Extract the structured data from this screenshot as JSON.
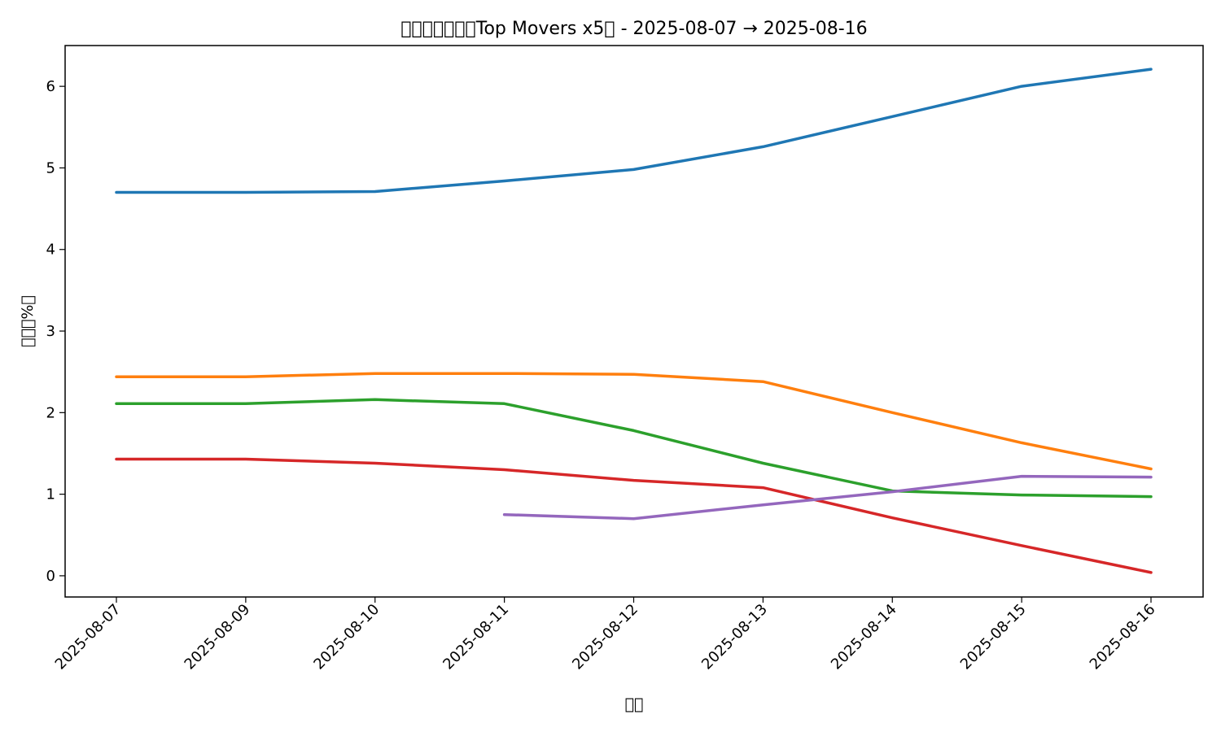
{
  "chart_data": {
    "type": "line",
    "title": "￿￿￿￿￿￿￿Top Movers x5￿ - 2025-08-07 → 2025-08-16",
    "xlabel": "￿￿",
    "ylabel": "￿￿￿%￿",
    "categories": [
      "2025-08-07",
      "2025-08-09",
      "2025-08-10",
      "2025-08-11",
      "2025-08-12",
      "2025-08-13",
      "2025-08-14",
      "2025-08-15",
      "2025-08-16"
    ],
    "ylim": [
      -0.26,
      6.5
    ],
    "yticks": [
      0,
      1,
      2,
      3,
      4,
      5,
      6
    ],
    "grid": false,
    "series": [
      {
        "color": "#1f77b4",
        "values": [
          4.7,
          4.7,
          4.71,
          4.84,
          4.98,
          5.26,
          5.63,
          6.0,
          6.21
        ]
      },
      {
        "color": "#ff7f0e",
        "values": [
          2.44,
          2.44,
          2.48,
          2.48,
          2.47,
          2.38,
          2.0,
          1.63,
          1.31
        ]
      },
      {
        "color": "#2ca02c",
        "values": [
          2.11,
          2.11,
          2.16,
          2.11,
          1.78,
          1.38,
          1.04,
          0.99,
          0.97
        ]
      },
      {
        "color": "#d62728",
        "values": [
          1.43,
          1.43,
          1.38,
          1.3,
          1.17,
          1.08,
          0.71,
          0.37,
          0.04
        ]
      },
      {
        "color": "#9467bd",
        "values": [
          null,
          null,
          null,
          0.75,
          0.7,
          0.87,
          1.03,
          1.22,
          1.21
        ]
      }
    ]
  }
}
